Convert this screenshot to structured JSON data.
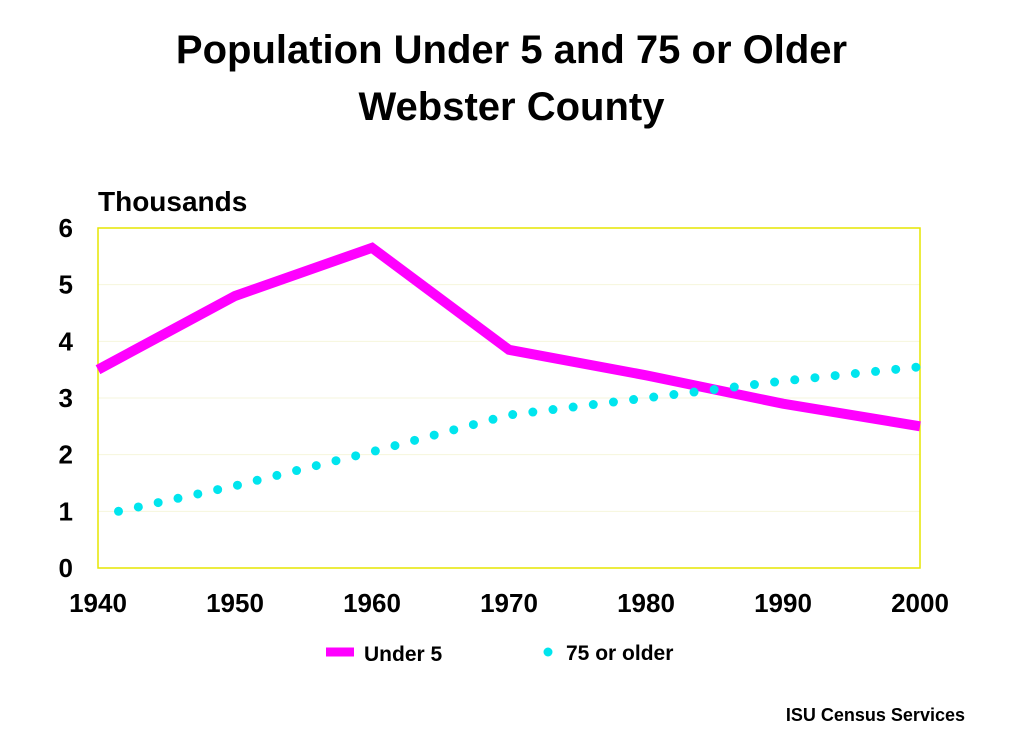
{
  "slide": {
    "title_line1": "Population Under 5 and 75 or Older",
    "title_line2": "Webster County",
    "footer": "ISU Census Services"
  },
  "colors": {
    "plot_border": "#e6e600",
    "grid": "#f6f6dc",
    "under5": "#ff00ff",
    "over75": "#00e5ee"
  },
  "chart_data": {
    "type": "line",
    "ylabel": "Thousands",
    "xlabel": "",
    "xlim": [
      1940,
      2000
    ],
    "ylim": [
      0,
      6
    ],
    "x_ticks": [
      "1940",
      "1950",
      "1960",
      "1970",
      "1980",
      "1990",
      "2000"
    ],
    "y_ticks": [
      "0",
      "1",
      "2",
      "3",
      "4",
      "5",
      "6"
    ],
    "legend_position": "bottom",
    "series": [
      {
        "name": "Under 5",
        "style": "solid",
        "color": "#ff00ff",
        "x": [
          1940,
          1950,
          1960,
          1970,
          1980,
          1990,
          2000
        ],
        "y": [
          3.5,
          4.8,
          5.65,
          3.85,
          3.4,
          2.9,
          2.5
        ]
      },
      {
        "name": "75 or older",
        "style": "dotted",
        "color": "#00e5ee",
        "x": [
          1941.5,
          1950,
          1960,
          1970,
          1980,
          1990,
          2000
        ],
        "y": [
          1.0,
          1.45,
          2.05,
          2.7,
          3.0,
          3.3,
          3.55
        ]
      }
    ]
  }
}
